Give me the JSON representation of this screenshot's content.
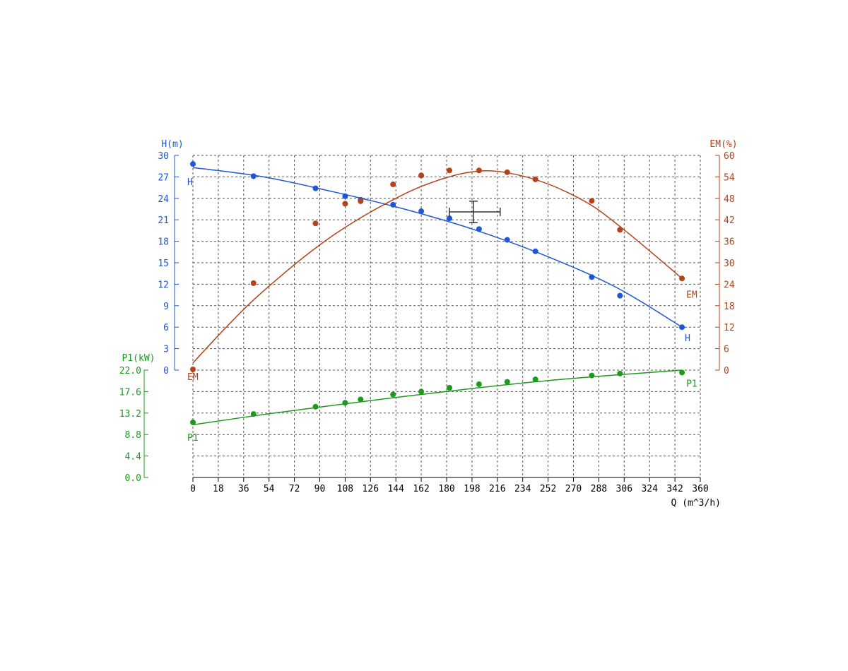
{
  "chart_data": {
    "type": "line",
    "x": {
      "label": "Q (m^3/h)",
      "range": [
        0,
        360
      ],
      "ticks": [
        "0",
        "18",
        "36",
        "54",
        "72",
        "90",
        "108",
        "126",
        "144",
        "162",
        "180",
        "198",
        "216",
        "234",
        "252",
        "270",
        "288",
        "306",
        "324",
        "342",
        "360"
      ]
    },
    "axes": {
      "H": {
        "label": "H(m)",
        "range": [
          0,
          30
        ],
        "ticks": [
          "0",
          "3",
          "6",
          "9",
          "12",
          "15",
          "18",
          "21",
          "24",
          "27",
          "30"
        ],
        "color": "#1f56d6"
      },
      "EM": {
        "label": "EM(%)",
        "range": [
          0,
          60
        ],
        "ticks": [
          "0",
          "6",
          "12",
          "18",
          "24",
          "30",
          "36",
          "42",
          "48",
          "54",
          "60"
        ],
        "color": "#b5421a"
      },
      "P1": {
        "label": "P1(kW)",
        "range": [
          0,
          22
        ],
        "ticks": [
          "0.0",
          "4.4",
          "8.8",
          "13.2",
          "17.6",
          "22.0"
        ],
        "color": "#1d9a1d"
      }
    },
    "series": [
      {
        "name": "H",
        "axis": "H",
        "points": [
          [
            0,
            28.8
          ],
          [
            43,
            27.1
          ],
          [
            87,
            25.4
          ],
          [
            108,
            24.3
          ],
          [
            119,
            23.8
          ],
          [
            142,
            23.1
          ],
          [
            162,
            22.2
          ],
          [
            182,
            21.2
          ],
          [
            203,
            19.7
          ],
          [
            223,
            18.2
          ],
          [
            243,
            16.6
          ],
          [
            283,
            13.0
          ],
          [
            303,
            10.4
          ],
          [
            347,
            6.0
          ]
        ],
        "curve": [
          [
            0,
            28.3
          ],
          [
            50,
            27.0
          ],
          [
            100,
            24.9
          ],
          [
            150,
            22.5
          ],
          [
            200,
            19.6
          ],
          [
            250,
            16.0
          ],
          [
            300,
            11.6
          ],
          [
            347,
            6.0
          ]
        ],
        "end_label_pos": [
          "start",
          "end"
        ]
      },
      {
        "name": "EM",
        "axis": "EM",
        "points": [
          [
            0,
            0.2
          ],
          [
            43,
            24.3
          ],
          [
            87,
            41.0
          ],
          [
            108,
            46.5
          ],
          [
            119,
            47.2
          ],
          [
            142,
            51.9
          ],
          [
            162,
            54.4
          ],
          [
            182,
            55.8
          ],
          [
            203,
            55.8
          ],
          [
            223,
            55.3
          ],
          [
            243,
            53.3
          ],
          [
            283,
            47.3
          ],
          [
            303,
            39.2
          ],
          [
            347,
            25.6
          ]
        ],
        "curve": [
          [
            0,
            2.0
          ],
          [
            20,
            10.5
          ],
          [
            40,
            18.5
          ],
          [
            60,
            25.5
          ],
          [
            80,
            32.0
          ],
          [
            100,
            37.8
          ],
          [
            120,
            42.8
          ],
          [
            140,
            47.2
          ],
          [
            160,
            51.0
          ],
          [
            180,
            53.8
          ],
          [
            195,
            55.2
          ],
          [
            210,
            55.7
          ],
          [
            225,
            55.0
          ],
          [
            245,
            53.0
          ],
          [
            265,
            49.8
          ],
          [
            285,
            45.5
          ],
          [
            305,
            39.5
          ],
          [
            325,
            33.0
          ],
          [
            347,
            25.6
          ]
        ]
      },
      {
        "name": "P1",
        "axis": "P1",
        "points": [
          [
            0,
            11.3
          ],
          [
            43,
            13.0
          ],
          [
            87,
            14.5
          ],
          [
            108,
            15.3
          ],
          [
            119,
            16.0
          ],
          [
            142,
            17.0
          ],
          [
            162,
            17.6
          ],
          [
            182,
            18.4
          ],
          [
            203,
            19.1
          ],
          [
            223,
            19.6
          ],
          [
            243,
            20.1
          ],
          [
            283,
            20.9
          ],
          [
            303,
            21.3
          ],
          [
            347,
            21.5
          ]
        ],
        "curve": [
          [
            0,
            10.8
          ],
          [
            50,
            12.9
          ],
          [
            100,
            14.8
          ],
          [
            150,
            16.6
          ],
          [
            200,
            18.3
          ],
          [
            250,
            19.8
          ],
          [
            300,
            21.0
          ],
          [
            347,
            22.0
          ]
        ]
      }
    ],
    "operating_point": {
      "q": 199,
      "h": 22.1,
      "q_range": [
        182,
        218
      ],
      "h_range": [
        20.6,
        23.6
      ]
    },
    "grid": true
  }
}
